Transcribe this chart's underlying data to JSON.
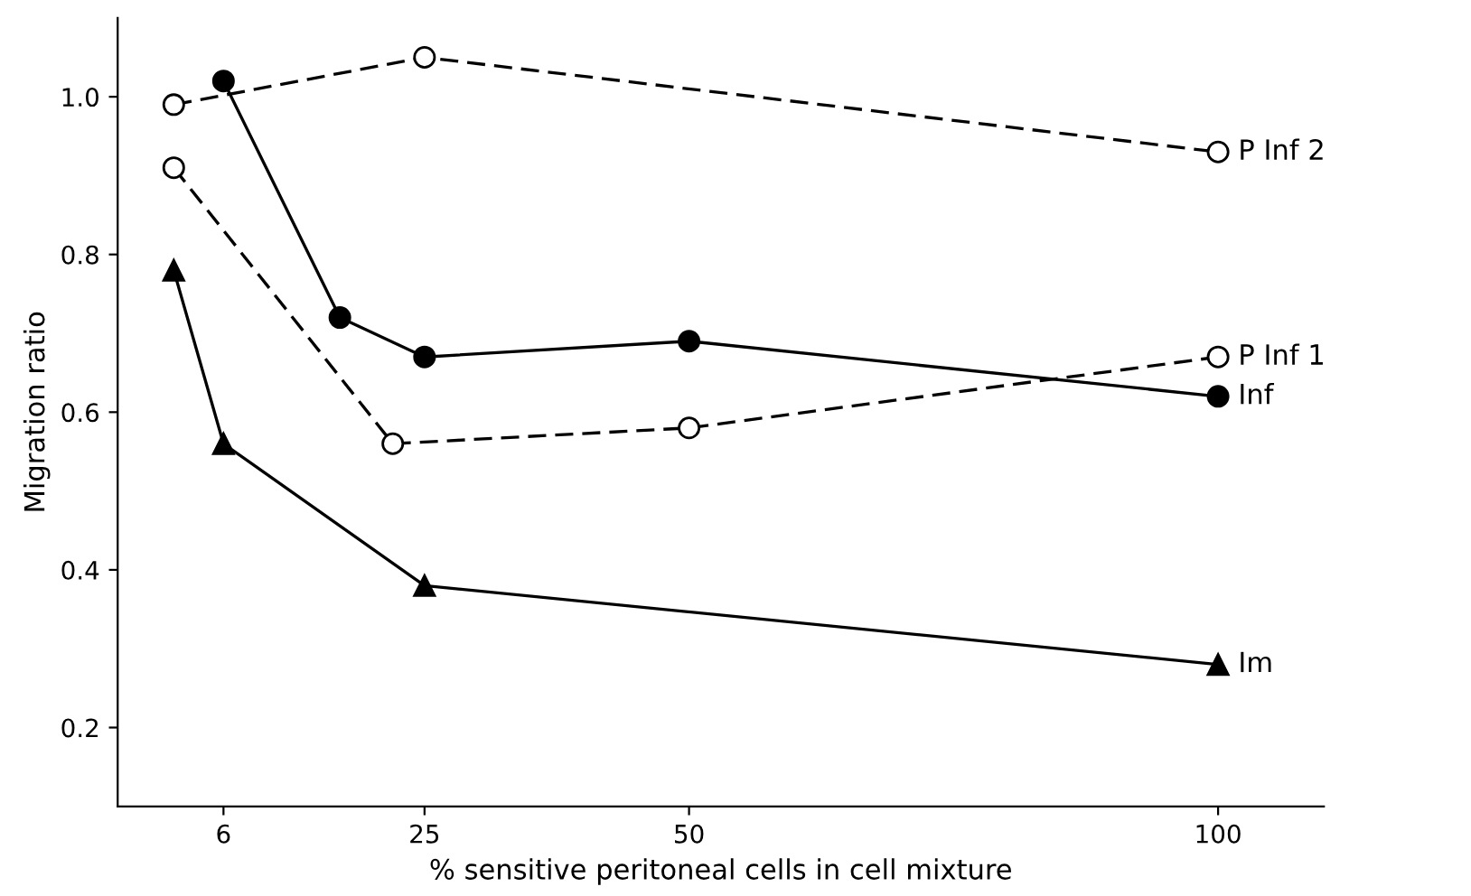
{
  "chart_data": {
    "type": "line",
    "xlabel": "% sensitive peritoneal cells in cell mixture",
    "ylabel": "Migration ratio",
    "xlim": [
      -4,
      110
    ],
    "ylim": [
      0.1,
      1.1
    ],
    "xticks": [
      6,
      25,
      50,
      100
    ],
    "yticks": [
      0.2,
      0.4,
      0.6,
      0.8,
      {
        "value": 1,
        "label": "1.0"
      }
    ],
    "grid": false,
    "legend": false,
    "series": [
      {
        "name": "P Inf 2",
        "color": "#000000",
        "marker": "circle",
        "line_style": "dashed",
        "x": [
          1.3,
          25,
          100
        ],
        "values": [
          0.99,
          1.05,
          0.93
        ]
      },
      {
        "name": "P Inf 1",
        "color": "#000000",
        "marker": "circle",
        "line_style": "dashed",
        "x": [
          1.3,
          22,
          50,
          100
        ],
        "values": [
          0.91,
          0.56,
          0.58,
          0.67
        ]
      },
      {
        "name": "Inf",
        "color": "#000000",
        "marker": "circle",
        "line_style": "solid",
        "x": [
          6,
          17,
          25,
          50,
          100
        ],
        "values": [
          1.02,
          0.72,
          0.67,
          0.69,
          0.62
        ]
      },
      {
        "name": "Im",
        "color": "#000000",
        "marker": "triangle",
        "line_style": "solid",
        "x": [
          1.3,
          6,
          25,
          100
        ],
        "values": [
          0.78,
          0.56,
          0.38,
          0.28
        ]
      }
    ]
  }
}
